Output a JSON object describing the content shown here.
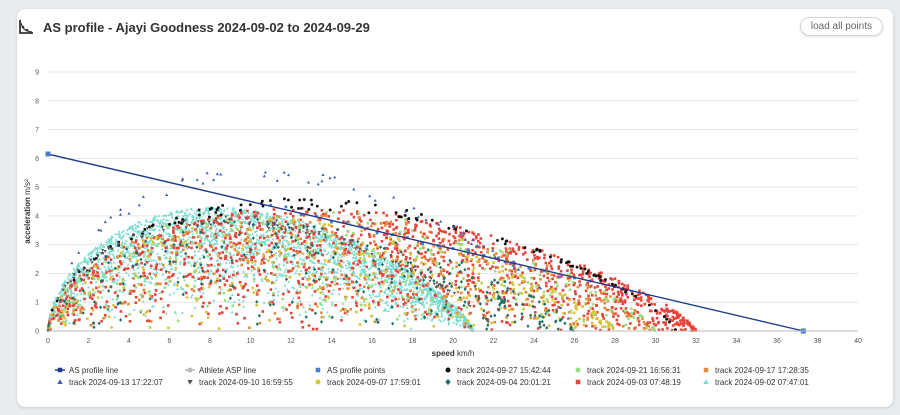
{
  "header": {
    "title": "AS profile - Ajayi Goodness 2024-09-02 to 2024-09-29",
    "load_button_label": "load all points"
  },
  "chart_data": {
    "type": "scatter",
    "xlabel_main": "speed",
    "xlabel_unit": "km/h",
    "ylabel_main": "acceleration",
    "ylabel_unit": "m/s²",
    "xlim": [
      0,
      40
    ],
    "ylim": [
      0,
      9
    ],
    "xticks": [
      0,
      2,
      4,
      6,
      8,
      10,
      12,
      14,
      16,
      18,
      20,
      22,
      24,
      26,
      28,
      30,
      32,
      34,
      36,
      38,
      40
    ],
    "yticks": [
      0,
      1,
      2,
      3,
      4,
      5,
      6,
      7,
      8,
      9
    ],
    "grid": true,
    "legend_position": "bottom",
    "as_profile_line": {
      "x": [
        0,
        37.3
      ],
      "y": [
        6.15,
        0
      ]
    },
    "series": [
      {
        "name": "AS profile line",
        "color": "#1f3a8a",
        "marker": "line-square",
        "vmax": 0,
        "amax": 0,
        "density": 0
      },
      {
        "name": "Athlete ASP line",
        "color": "#b8b8b8",
        "marker": "line-circle",
        "vmax": 0,
        "amax": 0,
        "density": 0
      },
      {
        "name": "AS profile points",
        "color": "#4a7fc9",
        "marker": "square",
        "vmax": 37,
        "amax": 4.0,
        "density": 0
      },
      {
        "name": "track 2024-09-27 15:42:44",
        "color": "#111111",
        "marker": "circle",
        "vmax": 31,
        "amax": 4.6,
        "density": 120
      },
      {
        "name": "track 2024-09-21 16:56:31",
        "color": "#9be07c",
        "marker": "circle",
        "vmax": 30,
        "amax": 4.3,
        "density": 220
      },
      {
        "name": "track 2024-09-17 17:28:35",
        "color": "#e08a3a",
        "marker": "square",
        "vmax": 30,
        "amax": 4.2,
        "density": 380
      },
      {
        "name": "track 2024-09-13 17:22:07",
        "color": "#3e5bb8",
        "marker": "triangle",
        "vmax": 26,
        "amax": 5.7,
        "density": 60
      },
      {
        "name": "track 2024-09-10 16:59:55",
        "color": "#555555",
        "marker": "triangle-down",
        "vmax": 22,
        "amax": 4.0,
        "density": 120
      },
      {
        "name": "track 2024-09-07 17:59:01",
        "color": "#d9c33c",
        "marker": "circle",
        "vmax": 28,
        "amax": 3.9,
        "density": 380
      },
      {
        "name": "track 2024-09-04 20:01:21",
        "color": "#1c6e63",
        "marker": "diamond",
        "vmax": 26,
        "amax": 3.9,
        "density": 280
      },
      {
        "name": "track 2024-09-03 07:48:19",
        "color": "#e8433a",
        "marker": "square",
        "vmax": 32,
        "amax": 4.3,
        "density": 1300
      },
      {
        "name": "track 2024-09-02 07:47:01",
        "color": "#76dcd0",
        "marker": "triangle",
        "vmax": 21,
        "amax": 4.3,
        "density": 2600
      }
    ]
  }
}
